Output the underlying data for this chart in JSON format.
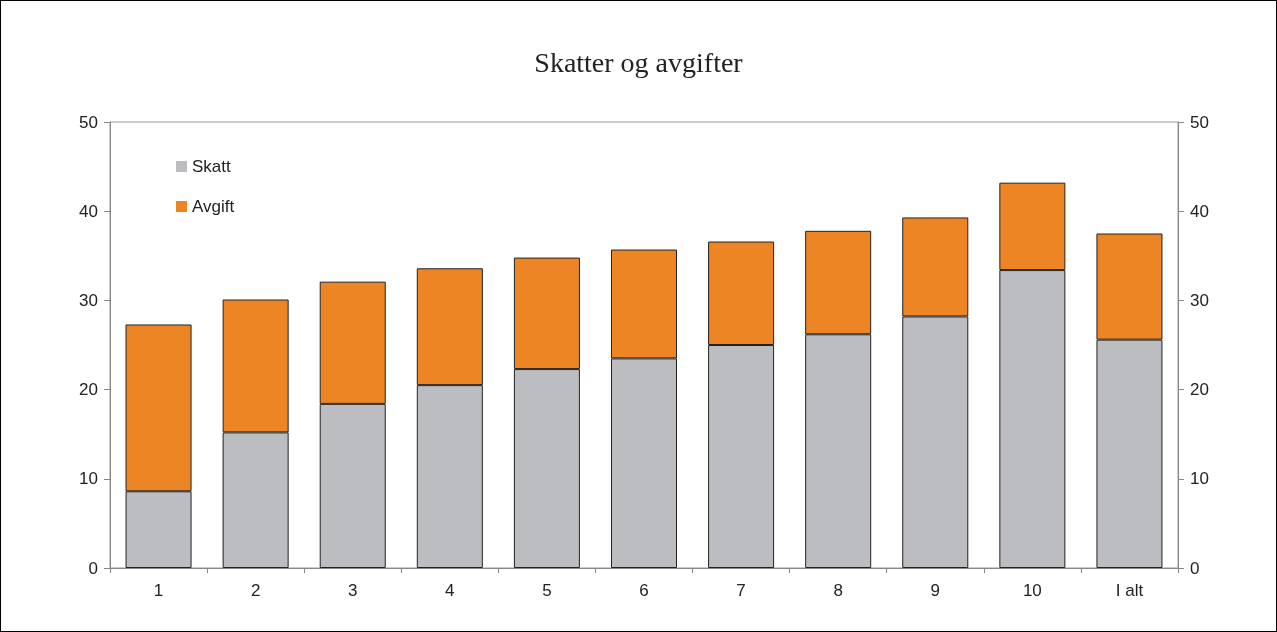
{
  "chart_data": {
    "type": "bar",
    "title": "Skatter og avgifter",
    "stacked": true,
    "categories": [
      "1",
      "2",
      "3",
      "4",
      "5",
      "6",
      "7",
      "8",
      "9",
      "10",
      "I alt"
    ],
    "series": [
      {
        "name": "Skatt",
        "color": "#bcbdc0",
        "values": [
          8.6,
          15.2,
          18.4,
          20.5,
          22.3,
          23.5,
          25.0,
          26.2,
          28.2,
          33.4,
          25.6
        ]
      },
      {
        "name": "Avgift",
        "color": "#ee8524",
        "values": [
          18.7,
          14.9,
          13.7,
          13.1,
          12.5,
          12.2,
          11.6,
          11.6,
          11.1,
          9.8,
          11.9
        ]
      }
    ],
    "ylim": [
      0,
      50
    ],
    "yticks": [
      0,
      10,
      20,
      30,
      40,
      50
    ],
    "y2lim": [
      0,
      50
    ],
    "y2ticks": [
      0,
      10,
      20,
      30,
      40,
      50
    ],
    "grid": false,
    "legend": "top left"
  }
}
